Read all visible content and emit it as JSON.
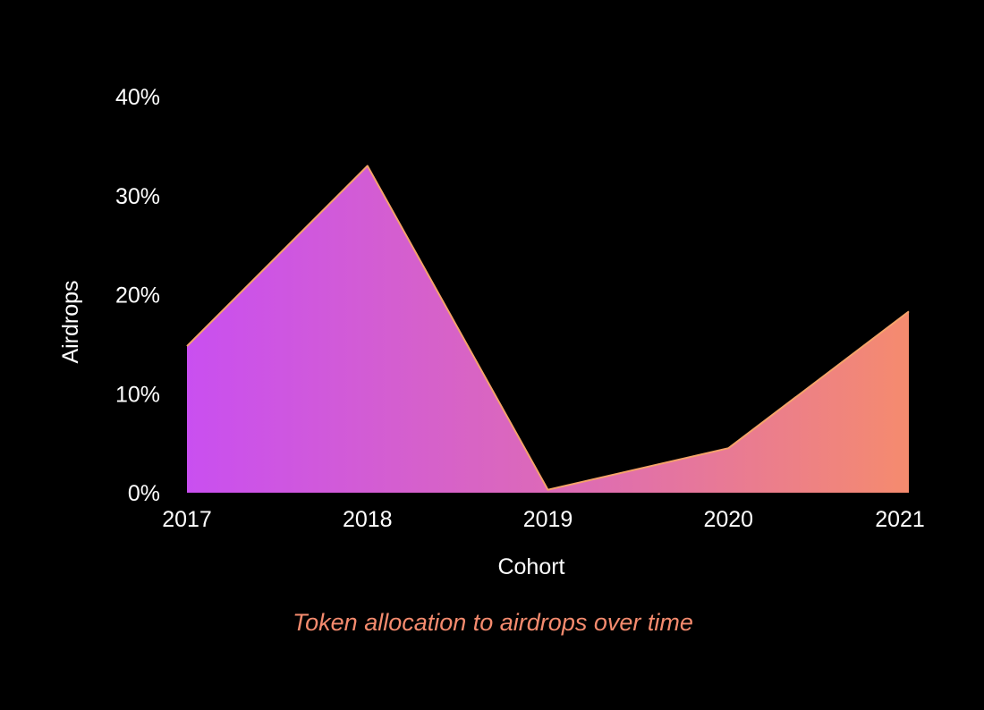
{
  "chart_data": {
    "type": "area",
    "title": "Token allocation to airdrops over time",
    "xlabel": "Cohort",
    "ylabel": "Airdrops",
    "categories": [
      "2017",
      "2018",
      "2019",
      "2020",
      "2021"
    ],
    "series": [
      {
        "values": [
          14.8,
          33.0,
          0.3,
          4.5,
          18.3
        ]
      }
    ],
    "ylim": [
      0,
      40
    ],
    "yticks": [
      0,
      10,
      20,
      30,
      40
    ],
    "ytick_labels": [
      "0%",
      "10%",
      "20%",
      "30%",
      "40%"
    ],
    "grid": false,
    "legend": "none",
    "colors": {
      "background": "#000000",
      "gradient_start": "#c94ff0",
      "gradient_mid": "#de6cb3",
      "gradient_end": "#f58b6e",
      "outline": "#f5a36a",
      "text": "#ffffff",
      "caption": "#f58b6e"
    }
  }
}
